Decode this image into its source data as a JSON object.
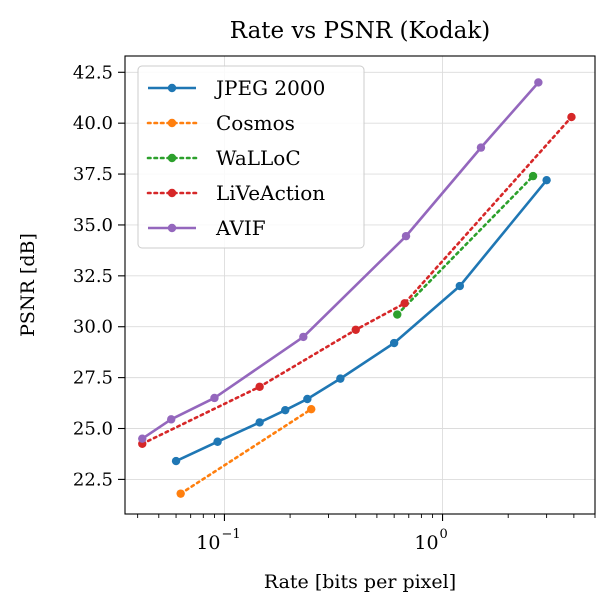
{
  "chart_data": {
    "type": "line",
    "title": "Rate vs PSNR (Kodak)",
    "xlabel": "Rate [bits per pixel]",
    "ylabel": "PSNR [dB]",
    "xscale": "log",
    "xlim": [
      0.035,
      5.0
    ],
    "ylim": [
      20.8,
      43.3
    ],
    "x_ticks": [
      {
        "value": 0.1,
        "base": "10",
        "exp": "−1"
      },
      {
        "value": 1,
        "base": "10",
        "exp": "0"
      }
    ],
    "y_ticks": [
      22.5,
      25.0,
      27.5,
      30.0,
      32.5,
      35.0,
      37.5,
      40.0,
      42.5
    ],
    "y_tick_labels": [
      "22.5",
      "25.0",
      "27.5",
      "30.0",
      "32.5",
      "35.0",
      "37.5",
      "40.0",
      "42.5"
    ],
    "grid": true,
    "legend_position": "upper-left",
    "series": [
      {
        "name": "JPEG 2000",
        "color": "#1f77b4",
        "linestyle": "solid",
        "x": [
          0.06,
          0.093,
          0.145,
          0.19,
          0.24,
          0.34,
          0.6,
          1.2,
          3.0
        ],
        "y": [
          23.4,
          24.35,
          25.3,
          25.9,
          26.45,
          27.45,
          29.2,
          32.0,
          37.2
        ]
      },
      {
        "name": "Cosmos",
        "color": "#ff7f0e",
        "linestyle": "dotted",
        "x": [
          0.063,
          0.25
        ],
        "y": [
          21.8,
          25.95
        ]
      },
      {
        "name": "WaLLoC",
        "color": "#2ca02c",
        "linestyle": "dotted",
        "x": [
          0.62,
          2.6
        ],
        "y": [
          30.6,
          37.4
        ]
      },
      {
        "name": "LiVeAction",
        "color": "#d62728",
        "linestyle": "dotted",
        "x": [
          0.042,
          0.145,
          0.4,
          0.67,
          3.9
        ],
        "y": [
          24.25,
          27.05,
          29.85,
          31.15,
          40.3
        ]
      },
      {
        "name": "AVIF",
        "color": "#9467bd",
        "linestyle": "solid",
        "x": [
          0.042,
          0.057,
          0.09,
          0.23,
          0.68,
          1.5,
          2.75
        ],
        "y": [
          24.5,
          25.45,
          26.5,
          29.5,
          34.45,
          38.8,
          42.0
        ]
      }
    ]
  }
}
